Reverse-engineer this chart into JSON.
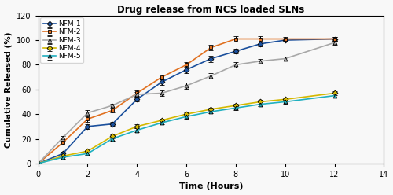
{
  "title": "Drug release from NCS loaded SLNs",
  "xlabel": "Time (Hours)",
  "ylabel": "Cumulative Released (%)",
  "xlim": [
    0,
    14
  ],
  "ylim": [
    0,
    120
  ],
  "xticks": [
    0,
    2,
    4,
    6,
    8,
    10,
    12,
    14
  ],
  "yticks": [
    0,
    20,
    40,
    60,
    80,
    100,
    120
  ],
  "series": [
    {
      "label": "NFM-1",
      "color": "#1a4f9c",
      "marker": "D",
      "markersize": 3.5,
      "x": [
        0,
        1,
        2,
        3,
        4,
        5,
        6,
        7,
        8,
        9,
        10,
        12
      ],
      "y": [
        0,
        8,
        30,
        32,
        52,
        66,
        76,
        85,
        91,
        97,
        100,
        101
      ],
      "yerr": [
        0.3,
        1.5,
        2,
        1.5,
        2,
        2,
        2.5,
        2.5,
        2,
        2,
        1.5,
        1.5
      ]
    },
    {
      "label": "NFM-2",
      "color": "#e07020",
      "marker": "s",
      "markersize": 3.5,
      "x": [
        0,
        1,
        2,
        3,
        4,
        5,
        6,
        7,
        8,
        9,
        10,
        12
      ],
      "y": [
        0,
        17,
        36,
        43,
        57,
        70,
        80,
        94,
        101,
        101,
        101,
        101
      ],
      "yerr": [
        0.3,
        1.5,
        2,
        1.5,
        2,
        2,
        2.5,
        2.5,
        2,
        2,
        1.5,
        1.5
      ]
    },
    {
      "label": "NFM-3",
      "color": "#a8a8a8",
      "marker": "^",
      "markersize": 3.5,
      "x": [
        0,
        1,
        2,
        3,
        4,
        5,
        6,
        7,
        8,
        9,
        10,
        12
      ],
      "y": [
        0,
        21,
        41,
        47,
        56,
        57,
        63,
        71,
        80,
        83,
        85,
        98
      ],
      "yerr": [
        0.3,
        1.5,
        2,
        1.5,
        2,
        2,
        2.5,
        2.5,
        2,
        2,
        1.5,
        1.5
      ]
    },
    {
      "label": "NFM-4",
      "color": "#d4b800",
      "marker": "D",
      "markersize": 3.5,
      "x": [
        0,
        1,
        2,
        3,
        4,
        5,
        6,
        7,
        8,
        9,
        10,
        12
      ],
      "y": [
        0,
        6,
        10,
        22,
        30,
        35,
        40,
        44,
        47,
        50,
        52,
        57
      ],
      "yerr": [
        0.3,
        1,
        1,
        1.5,
        1.5,
        1.5,
        1.5,
        1.5,
        1.5,
        1.5,
        1.5,
        1.5
      ]
    },
    {
      "label": "NFM-5",
      "color": "#20b0c0",
      "marker": "^",
      "markersize": 3.5,
      "x": [
        0,
        1,
        2,
        3,
        4,
        5,
        6,
        7,
        8,
        9,
        10,
        12
      ],
      "y": [
        0,
        5,
        8,
        20,
        27,
        33,
        38,
        42,
        45,
        48,
        50,
        55
      ],
      "yerr": [
        0.3,
        1,
        1,
        1.5,
        1.5,
        1.5,
        1.5,
        1.5,
        1.5,
        1.5,
        1.5,
        1.5
      ]
    }
  ]
}
